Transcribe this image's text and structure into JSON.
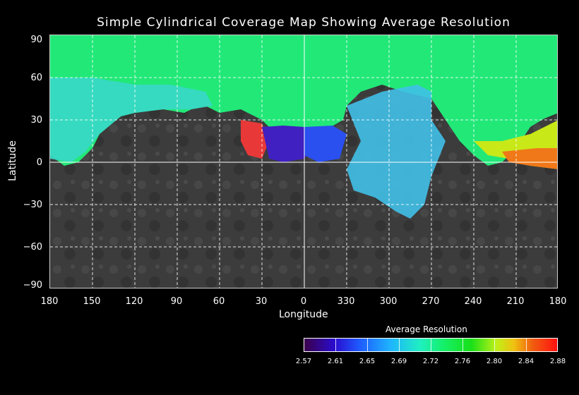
{
  "map": {
    "title": "Simple Cylindrical Coverage Map Showing Average Resolution",
    "xlabel": "Longitude",
    "ylabel": "Latitude",
    "lat_ticks": [
      "90",
      "60",
      "30",
      "0",
      "−30",
      "−60",
      "−90"
    ],
    "lon_ticks": [
      "180",
      "150",
      "120",
      "90",
      "60",
      "30",
      "0",
      "330",
      "300",
      "270",
      "240",
      "210",
      "180"
    ]
  },
  "legend": {
    "title": "Average Resolution",
    "labels": [
      "2.57",
      "2.61",
      "2.65",
      "2.69",
      "2.72",
      "2.76",
      "2.80",
      "2.84",
      "2.88"
    ]
  }
}
